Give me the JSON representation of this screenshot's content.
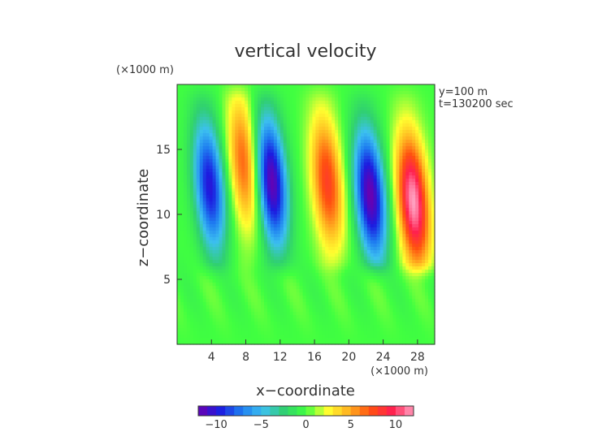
{
  "chart_data": {
    "type": "heatmap",
    "title": "vertical velocity",
    "xlabel": "x−coordinate",
    "ylabel": "z−coordinate",
    "x_unit": "(×1000 m)",
    "y_unit": "(×1000 m)",
    "annotations": [
      "y=100 m",
      "t=130200 sec"
    ],
    "xlim": [
      0,
      30
    ],
    "ylim": [
      0,
      20
    ],
    "x_ticks": [
      4,
      8,
      12,
      16,
      20,
      24,
      28
    ],
    "y_ticks": [
      5,
      10,
      15
    ],
    "colorbar": {
      "range": [
        -12,
        12
      ],
      "ticks": [
        -10,
        -5,
        0,
        5,
        10
      ],
      "tick_labels": [
        "−10",
        "−5",
        "0",
        "5",
        "10"
      ],
      "colors": [
        "#6a00b0",
        "#1c1ce0",
        "#1e7cf0",
        "#3cc0f0",
        "#30d070",
        "#40ff40",
        "#ffff30",
        "#ffb020",
        "#ff5010",
        "#ff2050",
        "#ffa0c0"
      ]
    },
    "background_value": 0,
    "features": [
      {
        "kind": "downdraft",
        "x": 3.8,
        "z": 12.2,
        "peak": -10
      },
      {
        "kind": "updraft",
        "x": 7.8,
        "z": 14.0,
        "peak": 7
      },
      {
        "kind": "downdraft",
        "x": 11.0,
        "z": 12.5,
        "peak": -12
      },
      {
        "kind": "updraft",
        "x": 17.5,
        "z": 12.5,
        "peak": 8
      },
      {
        "kind": "downdraft",
        "x": 22.5,
        "z": 11.5,
        "peak": -12
      },
      {
        "kind": "updraft",
        "x": 27.5,
        "z": 11.0,
        "peak": 12
      }
    ]
  }
}
